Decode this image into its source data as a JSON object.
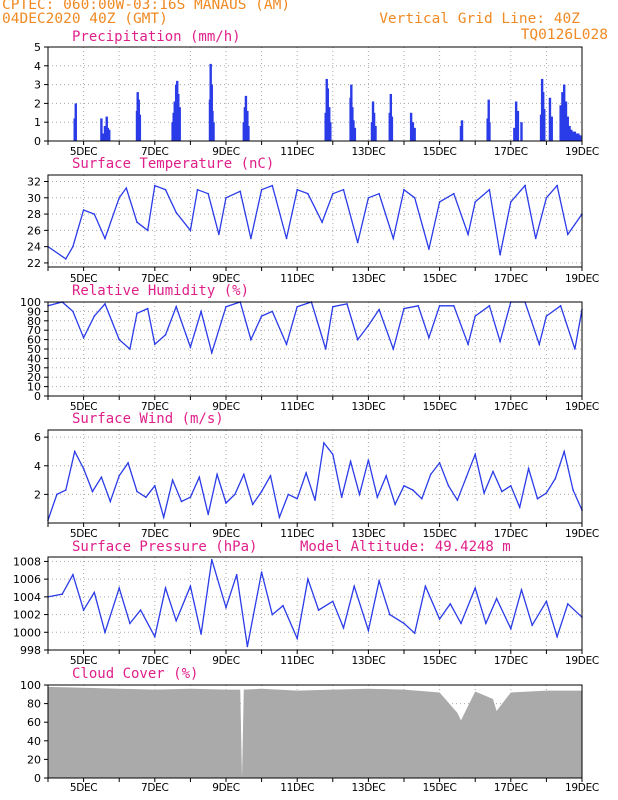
{
  "header": {
    "line1": "CPTEC:   060:00W-03:16S   MANAUS (AM)",
    "line2": "04DEC2020 40Z (GMT)",
    "vgrid": "Vertical Grid Line: 40Z",
    "code": "TQ0126L028"
  },
  "colors": {
    "header": "#f08a24",
    "title": "#e0208a",
    "series": "#2a3be8",
    "cloud": "#aaaaaa",
    "grid": "#aaaaaa"
  },
  "x_tick_labels": [
    "5DEC",
    "7DEC",
    "9DEC",
    "11DEC",
    "13DEC",
    "15DEC",
    "17DEC",
    "19DEC"
  ],
  "chart_data": [
    {
      "type": "bar",
      "title": "Precipitation (mm/h)",
      "ylim": [
        0,
        5
      ],
      "yticks": [
        0,
        1,
        2,
        3,
        4,
        5
      ],
      "x_range_days": [
        0,
        15
      ],
      "series": [
        {
          "x": [
            0.75,
            0.78,
            1.5,
            1.55,
            1.6,
            1.65,
            1.68,
            1.72,
            2.5,
            2.52,
            2.55,
            2.58,
            3.5,
            3.53,
            3.56,
            3.6,
            3.63,
            3.66,
            3.7,
            4.55,
            4.57,
            4.6,
            4.62,
            4.65,
            5.5,
            5.53,
            5.56,
            5.6,
            5.63,
            7.8,
            7.83,
            7.86,
            7.9,
            7.93,
            8.5,
            8.52,
            8.55,
            8.58,
            8.62,
            9.1,
            9.13,
            9.16,
            9.2,
            9.6,
            9.63,
            9.66,
            10.2,
            10.25,
            10.3,
            11.6,
            11.63,
            12.35,
            12.38,
            12.4,
            13.1,
            13.15,
            13.2,
            13.3,
            13.85,
            13.88,
            13.91,
            13.94,
            14.1,
            14.15,
            14.4,
            14.45,
            14.5,
            14.55,
            14.6,
            14.65,
            14.7,
            14.75,
            14.8,
            14.85,
            14.9,
            14.92,
            14.95
          ],
          "values": [
            1.2,
            2.0,
            1.2,
            0.4,
            0.8,
            1.3,
            0.7,
            0.6,
            1.6,
            2.6,
            2.2,
            1.4,
            1.0,
            1.5,
            2.1,
            3.0,
            3.2,
            2.5,
            1.8,
            2.2,
            4.1,
            3.0,
            1.6,
            1.0,
            1.0,
            1.8,
            2.4,
            1.6,
            0.8,
            1.5,
            3.3,
            2.8,
            1.8,
            1.0,
            2.3,
            3.0,
            1.8,
            1.1,
            0.7,
            1.0,
            2.1,
            1.5,
            0.8,
            1.5,
            2.5,
            1.3,
            1.5,
            1.0,
            0.7,
            0.8,
            1.1,
            1.2,
            2.2,
            1.0,
            0.7,
            2.1,
            1.6,
            1.0,
            1.4,
            3.3,
            2.6,
            1.7,
            2.3,
            1.3,
            1.9,
            2.6,
            3.0,
            2.1,
            1.3,
            0.8,
            0.6,
            0.5,
            0.5,
            0.4,
            0.4,
            0.3,
            0.3
          ]
        }
      ]
    },
    {
      "type": "line",
      "title": "Surface Temperature (nC)",
      "ylim": [
        21.5,
        32.8
      ],
      "yticks": [
        22,
        24,
        26,
        28,
        30,
        32
      ],
      "series": [
        {
          "x": [
            0,
            0.5,
            0.7,
            1,
            1.3,
            1.6,
            2,
            2.2,
            2.5,
            2.8,
            3,
            3.3,
            3.6,
            4,
            4.2,
            4.5,
            4.8,
            5,
            5.4,
            5.7,
            6,
            6.3,
            6.7,
            7,
            7.3,
            7.7,
            8,
            8.3,
            8.7,
            9,
            9.3,
            9.7,
            10,
            10.3,
            10.7,
            11,
            11.4,
            11.8,
            12,
            12.4,
            12.7,
            13,
            13.4,
            13.7,
            14,
            14.3,
            14.6,
            15
          ],
          "values": [
            24,
            22.5,
            24,
            28.5,
            28,
            25,
            30,
            31.2,
            27,
            26,
            31.5,
            31,
            28.2,
            26,
            31,
            30.5,
            25.5,
            30,
            30.8,
            25,
            31,
            31.5,
            25,
            31,
            30.5,
            27,
            30.5,
            31,
            24.5,
            30,
            30.5,
            25,
            31,
            30,
            23.7,
            29.5,
            30.5,
            25.5,
            29.5,
            31,
            23,
            29.5,
            31.5,
            25,
            30,
            31.5,
            25.5,
            28
          ]
        }
      ]
    },
    {
      "type": "line",
      "title": "Relative Humidity (%)",
      "ylim": [
        0,
        100
      ],
      "yticks": [
        0,
        10,
        20,
        30,
        40,
        50,
        60,
        70,
        80,
        90,
        100
      ],
      "series": [
        {
          "x": [
            0,
            0.4,
            0.7,
            1,
            1.3,
            1.6,
            2,
            2.3,
            2.5,
            2.8,
            3,
            3.3,
            3.6,
            4,
            4.3,
            4.6,
            5,
            5.4,
            5.7,
            6,
            6.3,
            6.7,
            7,
            7.4,
            7.8,
            8,
            8.4,
            8.7,
            9,
            9.3,
            9.7,
            10,
            10.4,
            10.7,
            11,
            11.4,
            11.8,
            12,
            12.4,
            12.7,
            13,
            13.4,
            13.8,
            14,
            14.4,
            14.8,
            15
          ],
          "values": [
            96,
            100,
            90,
            62,
            85,
            98,
            60,
            50,
            88,
            93,
            55,
            65,
            95,
            52,
            90,
            46,
            95,
            100,
            60,
            85,
            90,
            55,
            95,
            100,
            50,
            95,
            98,
            60,
            75,
            92,
            50,
            93,
            96,
            62,
            96,
            96,
            55,
            85,
            96,
            58,
            100,
            100,
            55,
            85,
            96,
            50,
            92
          ]
        }
      ]
    },
    {
      "type": "line",
      "title": "Surface Wind (m/s)",
      "ylim": [
        0,
        6.5
      ],
      "yticks": [
        2,
        4,
        6
      ],
      "series": [
        {
          "x": [
            0,
            0.25,
            0.5,
            0.75,
            1,
            1.25,
            1.5,
            1.75,
            2,
            2.25,
            2.5,
            2.75,
            3,
            3.25,
            3.5,
            3.75,
            4,
            4.25,
            4.5,
            4.75,
            5,
            5.25,
            5.5,
            5.75,
            6,
            6.25,
            6.5,
            6.75,
            7,
            7.25,
            7.5,
            7.75,
            8,
            8.25,
            8.5,
            8.75,
            9,
            9.25,
            9.5,
            9.75,
            10,
            10.25,
            10.5,
            10.75,
            11,
            11.25,
            11.5,
            11.75,
            12,
            12.25,
            12.5,
            12.75,
            13,
            13.25,
            13.5,
            13.75,
            14,
            14.25,
            14.5,
            14.75,
            15
          ],
          "values": [
            0.2,
            2,
            2.3,
            5,
            3.8,
            2.2,
            3.2,
            1.5,
            3.3,
            4.2,
            2.2,
            1.8,
            2.6,
            0.4,
            3,
            1.5,
            1.8,
            3.2,
            0.6,
            3.4,
            1.4,
            2,
            3.4,
            1.3,
            2.2,
            3.3,
            0.4,
            2,
            1.7,
            3.5,
            1.6,
            5.6,
            4.8,
            1.8,
            4.3,
            2,
            4.4,
            1.8,
            3.3,
            1.3,
            2.6,
            2.3,
            1.7,
            3.4,
            4.2,
            2.6,
            1.6,
            3.2,
            4.8,
            2.1,
            3.6,
            2.2,
            2.6,
            1.1,
            3.8,
            1.7,
            2.1,
            3.1,
            5,
            2.3,
            0.9
          ]
        }
      ]
    },
    {
      "type": "line",
      "title": "Surface Pressure (hPa)",
      "extra_label": "Model Altitude: 49.4248 m",
      "ylim": [
        998,
        1008.5
      ],
      "yticks": [
        998,
        1000,
        1002,
        1004,
        1006,
        1008
      ],
      "series": [
        {
          "x": [
            0,
            0.4,
            0.7,
            1,
            1.3,
            1.6,
            2,
            2.3,
            2.6,
            3,
            3.3,
            3.6,
            4,
            4.3,
            4.6,
            5,
            5.3,
            5.6,
            6,
            6.3,
            6.6,
            7,
            7.3,
            7.6,
            8,
            8.3,
            8.6,
            9,
            9.3,
            9.6,
            10,
            10.3,
            10.6,
            11,
            11.3,
            11.6,
            12,
            12.3,
            12.6,
            13,
            13.3,
            13.6,
            14,
            14.3,
            14.6,
            15
          ],
          "values": [
            1004,
            1004.3,
            1006.5,
            1002.5,
            1004.5,
            1000,
            1005,
            1001,
            1002.5,
            999.5,
            1005,
            1001.3,
            1005.2,
            999.8,
            1008.2,
            1002.8,
            1006.5,
            998.4,
            1006.8,
            1002,
            1003,
            999.3,
            1006,
            1002.5,
            1003.5,
            1000.5,
            1005.2,
            1000.2,
            1005.8,
            1002,
            1001,
            999.9,
            1005.2,
            1001.5,
            1003.2,
            1001,
            1005,
            1001,
            1003.8,
            1000.4,
            1004.8,
            1000.8,
            1003.5,
            999.5,
            1003.2,
            1001.7
          ]
        }
      ]
    },
    {
      "type": "area",
      "title": "Cloud Cover (%)",
      "ylim": [
        0,
        100
      ],
      "yticks": [
        0,
        20,
        40,
        60,
        80,
        100
      ],
      "series": [
        {
          "x": [
            0,
            1,
            2,
            3,
            4,
            5,
            5.4,
            5.45,
            5.5,
            6,
            7,
            8,
            9,
            10,
            11,
            11.5,
            11.6,
            12,
            12.5,
            12.6,
            13,
            14,
            15
          ],
          "values": [
            98,
            97,
            96,
            95,
            96,
            95,
            95,
            0,
            95,
            96,
            94,
            95,
            96,
            95,
            92,
            70,
            62,
            93,
            85,
            72,
            92,
            94,
            94
          ]
        }
      ]
    }
  ]
}
